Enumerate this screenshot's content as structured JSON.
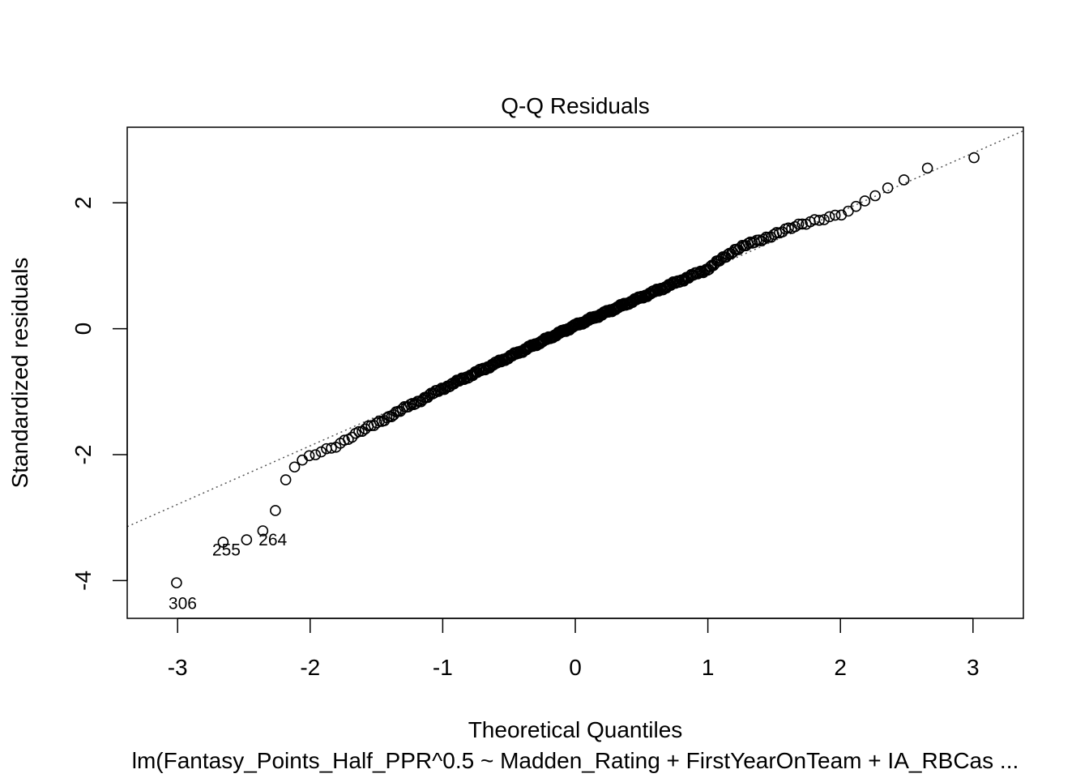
{
  "chart_data": {
    "type": "scatter",
    "title": "Q-Q Residuals",
    "xlabel": "Theoretical Quantiles",
    "ylabel": "Standardized residuals",
    "subtitle": "lm(Fantasy_Points_Half_PPR^0.5 ~ Madden_Rating + FirstYearOnTeam + IA_RBCas ...",
    "xlim": [
      -3.38,
      3.38
    ],
    "ylim": [
      -4.6,
      3.2
    ],
    "xticks": [
      "-3",
      "-2",
      "-1",
      "0",
      "1",
      "2",
      "3"
    ],
    "yticks": [
      "-4",
      "-2",
      "0",
      "2"
    ],
    "grid": false,
    "reference_line": {
      "style": "dotted",
      "intercept": 0.0,
      "slope": 0.93
    },
    "n_points": 380,
    "outliers": [
      {
        "label": "306",
        "x": -3.13,
        "y": -4.35
      },
      {
        "label": "255",
        "x": -2.8,
        "y": -3.5
      },
      {
        "label": "264",
        "x": -2.45,
        "y": -3.34
      }
    ],
    "anchor_points": [
      [
        -3.13,
        -4.35
      ],
      [
        -2.8,
        -3.5
      ],
      [
        -2.63,
        -3.37
      ],
      [
        -2.52,
        -3.37
      ],
      [
        -2.45,
        -3.34
      ],
      [
        -2.35,
        -3.2
      ],
      [
        -2.28,
        -3.03
      ],
      [
        -2.22,
        -2.55
      ],
      [
        -2.17,
        -2.34
      ],
      [
        -2.12,
        -2.2
      ],
      [
        -2.0,
        -2.01
      ],
      [
        -1.8,
        -1.85
      ],
      [
        -1.5,
        -1.5
      ],
      [
        -1.0,
        -0.95
      ],
      [
        -0.5,
        -0.45
      ],
      [
        0.0,
        0.05
      ],
      [
        0.5,
        0.5
      ],
      [
        1.0,
        0.95
      ],
      [
        1.2,
        1.25
      ],
      [
        1.5,
        1.5
      ],
      [
        1.8,
        1.72
      ],
      [
        2.0,
        1.82
      ],
      [
        2.1,
        1.92
      ],
      [
        2.2,
        2.05
      ],
      [
        2.3,
        2.15
      ],
      [
        2.4,
        2.3
      ],
      [
        2.5,
        2.38
      ],
      [
        2.63,
        2.53
      ],
      [
        2.8,
        2.66
      ],
      [
        3.13,
        2.75
      ]
    ]
  }
}
